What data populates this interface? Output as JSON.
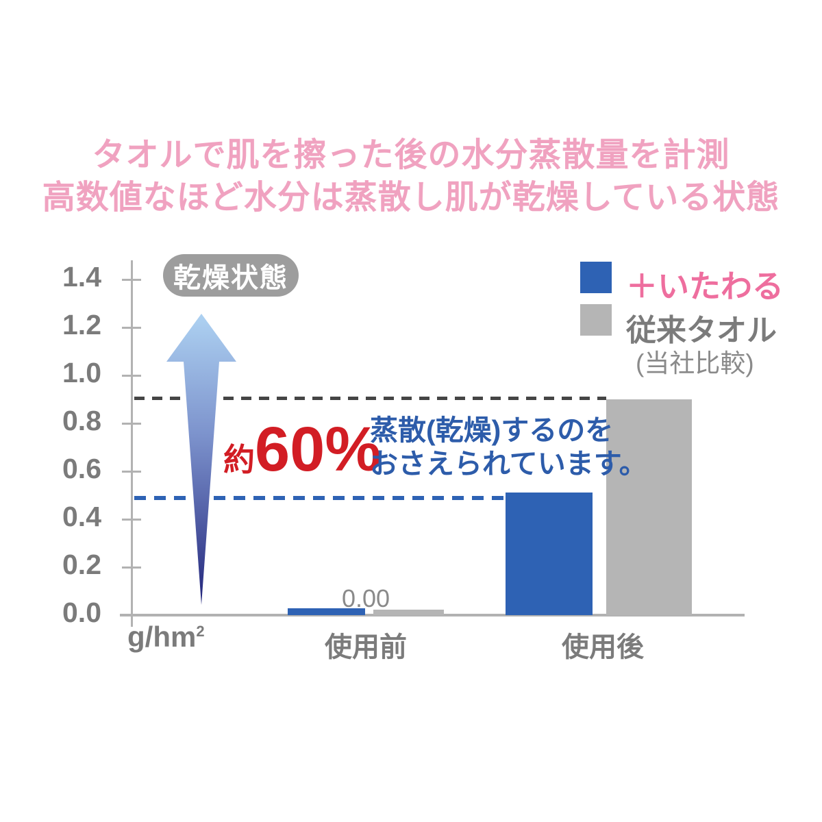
{
  "title": {
    "line1": "タオルで肌を擦った後の水分蒸散量を計測",
    "line2": "高数値なほど水分は蒸散し肌が乾燥している状態"
  },
  "legend": {
    "series1_label": "＋いたわる",
    "series2_label": "従来タオル",
    "note": "(当社比較)"
  },
  "annotations": {
    "dry_state_badge": "乾燥状態",
    "reduction_prefix": "約",
    "reduction_value": "60%",
    "note_line1": "蒸散(乾燥)するのを",
    "note_line2": "おさえられています。",
    "zero_value_label": "0.00"
  },
  "chart_data": {
    "type": "bar",
    "title": "タオルで肌を擦った後の水分蒸散量を計測／高数値なほど水分は蒸散し肌が乾燥している状態",
    "categories": [
      "使用前",
      "使用後"
    ],
    "series": [
      {
        "name": "＋いたわる",
        "color": "#2e62b4",
        "values": [
          0.0,
          0.51
        ]
      },
      {
        "name": "従来タオル",
        "color": "#b5b5b5",
        "values": [
          0.0,
          0.9
        ]
      }
    ],
    "unit": {
      "text": "g/hm",
      "sup": "2"
    },
    "ylim": [
      0,
      1.4
    ],
    "yticks": [
      1.4,
      1.2,
      1.0,
      0.8,
      0.6,
      0.4,
      0.2,
      0.0
    ],
    "ytick_labels": [
      "1.4",
      "1.2",
      "1.0",
      "0.8",
      "0.6",
      "0.4",
      "0.2",
      "0.0"
    ],
    "grid": false,
    "legend_position": "top-right",
    "data_labels": {
      "before_use": "0.00"
    },
    "reference_lines": [
      {
        "at_value": 0.9,
        "style": "dashed",
        "color": "#454545",
        "meaning": "従来タオル 使用後レベル"
      },
      {
        "at_value": 0.51,
        "style": "dashed",
        "color": "#2e62b4",
        "meaning": "＋いたわる 使用後レベル"
      }
    ],
    "annotation": "約60% 蒸散(乾燥)するのをおさえられています。"
  },
  "colors": {
    "title-pink": "#f0a2c0",
    "accent-blue": "#2e62b4",
    "bar-gray": "#b5b5b5",
    "legend-pink": "#ee6e9e",
    "text-gray": "#7b7b7b",
    "note-blue": "#2d5caa",
    "alert-red": "#d21d24",
    "badge-gray": "#9d9d9d",
    "dash-gray": "#454545",
    "axis-gray": "#b2b2b2",
    "arrow-top": "#aed2f2",
    "arrow-mid": "#7c92cc",
    "arrow-bottom": "#23267c"
  }
}
